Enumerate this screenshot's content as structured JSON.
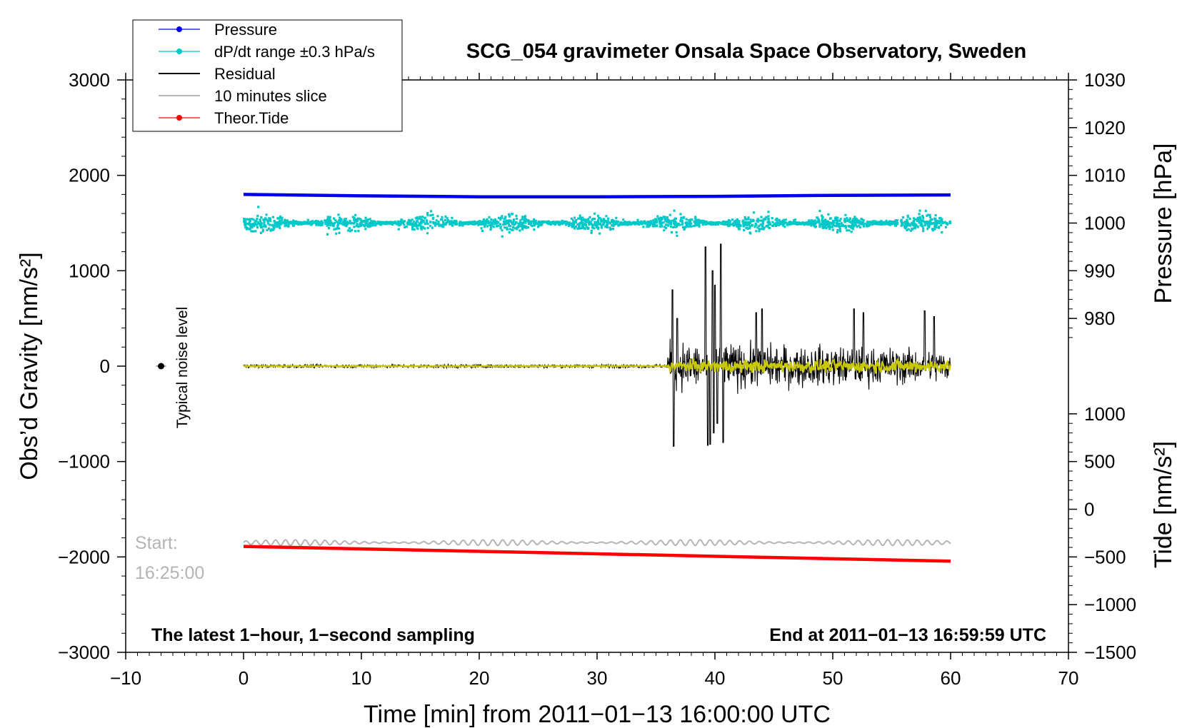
{
  "chart_data": {
    "type": "line",
    "title": "SCG_054 gravimeter Onsala Space Observatory, Sweden",
    "xlabel": "Time [min] from 2011−01−13 16:00:00 UTC",
    "ylabel_left": "Obs’d Gravity [nm/s²]",
    "ylabel_right_top": "Pressure [hPa]",
    "ylabel_right_bottom": "Tide [nm/s²]",
    "xlim": [
      -10,
      70
    ],
    "ylim_left": [
      -3000,
      3000
    ],
    "x_ticks": [
      {
        "value": -10,
        "label": "−10"
      },
      {
        "value": 0,
        "label": "0"
      },
      {
        "value": 10,
        "label": "10"
      },
      {
        "value": 20,
        "label": "20"
      },
      {
        "value": 30,
        "label": "30"
      },
      {
        "value": 40,
        "label": "40"
      },
      {
        "value": 50,
        "label": "50"
      },
      {
        "value": 60,
        "label": "60"
      },
      {
        "value": 70,
        "label": "70"
      }
    ],
    "left_ticks": [
      {
        "value": 3000,
        "label": "3000"
      },
      {
        "value": 2000,
        "label": "2000"
      },
      {
        "value": 1000,
        "label": "1000"
      },
      {
        "value": 0,
        "label": "0"
      },
      {
        "value": -1000,
        "label": "−1000"
      },
      {
        "value": -2000,
        "label": "−2000"
      },
      {
        "value": -3000,
        "label": "−3000"
      }
    ],
    "pressure_axis": {
      "range": [
        970,
        1030
      ],
      "ticks": [
        {
          "value": 1030,
          "label": "1030"
        },
        {
          "value": 1020,
          "label": "1020"
        },
        {
          "value": 1010,
          "label": "1010"
        },
        {
          "value": 1000,
          "label": "1000"
        },
        {
          "value": 990,
          "label": "990"
        },
        {
          "value": 980,
          "label": "980"
        }
      ]
    },
    "tide_axis": {
      "range": [
        -1500,
        1000
      ],
      "ticks": [
        {
          "value": 1000,
          "label": "1000"
        },
        {
          "value": 500,
          "label": "500"
        },
        {
          "value": 0,
          "label": "0"
        },
        {
          "value": -500,
          "label": "−500"
        },
        {
          "value": -1000,
          "label": "−1000"
        },
        {
          "value": -1500,
          "label": "−1500"
        }
      ]
    },
    "legend": {
      "position": "top-left",
      "entries": [
        {
          "label": "Pressure",
          "color": "#0000ee",
          "marker": true
        },
        {
          "label": "dP/dt range ±0.3 hPa/s",
          "color": "#00c8c8",
          "marker": true
        },
        {
          "label": "Residual",
          "color": "#000000",
          "marker": false
        },
        {
          "label": "10 minutes slice",
          "color": "#b4b4b4",
          "marker": false
        },
        {
          "label": "Theor.Tide",
          "color": "#ff0000",
          "marker": true
        }
      ]
    },
    "series": [
      {
        "name": "Pressure",
        "axis": "pressure",
        "color": "#0000ee",
        "x": [
          0,
          10,
          20,
          30,
          40,
          50,
          60
        ],
        "values": [
          1006.0,
          1005.7,
          1005.5,
          1005.5,
          1005.6,
          1005.8,
          1005.9
        ]
      },
      {
        "name": "dP/dt range ±0.3 hPa/s",
        "axis": "left",
        "color": "#00c8c8",
        "center": 1500,
        "spread_max": 250
      },
      {
        "name": "Residual",
        "axis": "left",
        "color": "#000000",
        "quiet_until_min": 36,
        "quiet_amplitude": 30,
        "peak_positive": 1280,
        "peak_negative": -850
      },
      {
        "name": "Residual (smoothed)",
        "axis": "left",
        "color": "#c8c800",
        "amplitude": 120
      },
      {
        "name": "10 minutes slice",
        "axis": "tide",
        "color": "#b4b4b4",
        "x": [
          0,
          60
        ],
        "values": [
          -350,
          -350
        ],
        "amplitude": 30
      },
      {
        "name": "Theor.Tide",
        "axis": "tide",
        "color": "#ff0000",
        "x": [
          0,
          60
        ],
        "values": [
          -390,
          -545
        ]
      }
    ],
    "noise_marker": {
      "x": -7,
      "y": 0,
      "label": "Typical noise level"
    },
    "annotations": {
      "start_label": "Start:",
      "start_time": "16:25:00",
      "footer_left": "The latest 1−hour, 1−second sampling",
      "footer_right": "End at 2011−01−13 16:59:59 UTC"
    }
  }
}
